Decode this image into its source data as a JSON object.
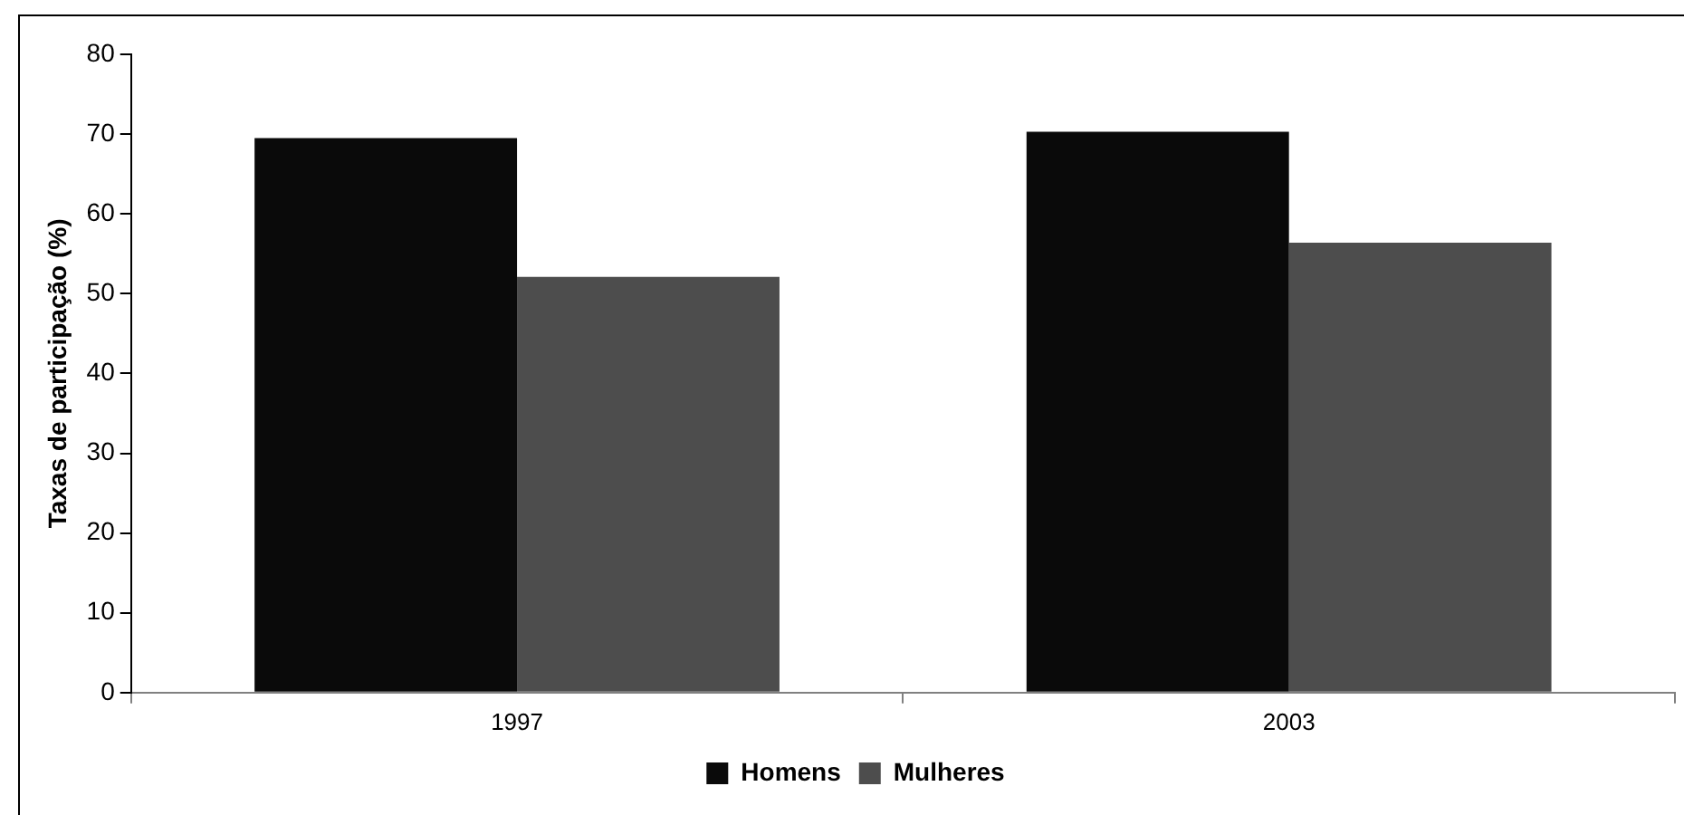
{
  "chart_data": {
    "type": "bar",
    "ylabel": "Taxas de participação (%)",
    "categories": [
      "1997",
      "2003"
    ],
    "series": [
      {
        "name": "Homens",
        "color": "#0a0a0a",
        "values": [
          69.5,
          70.3
        ]
      },
      {
        "name": "Mulheres",
        "color": "#4d4d4d",
        "values": [
          52.1,
          56.4
        ]
      }
    ],
    "ylim": [
      0,
      80
    ],
    "yticks": [
      0,
      10,
      20,
      30,
      40,
      50,
      60,
      70,
      80
    ],
    "grid": false,
    "legend": "bottom"
  }
}
